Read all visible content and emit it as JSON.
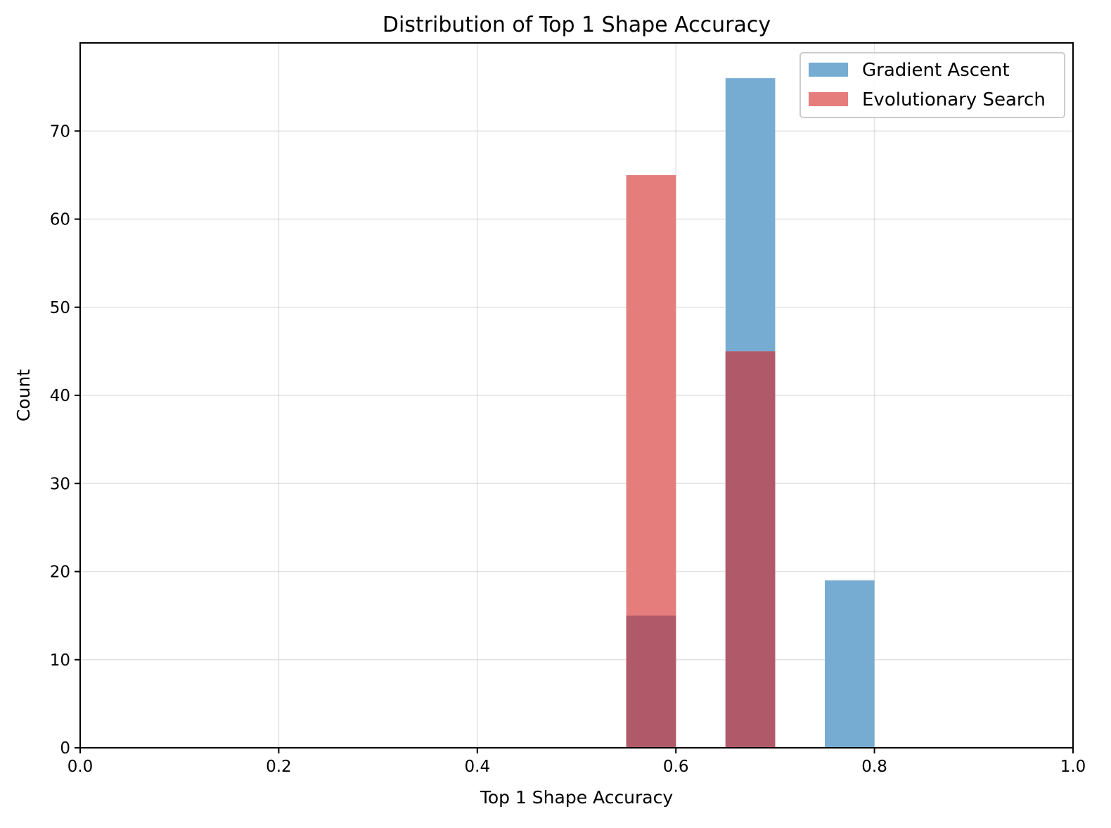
{
  "chart_data": {
    "type": "bar",
    "title": "Distribution of Top 1 Shape Accuracy",
    "xlabel": "Top 1 Shape Accuracy",
    "ylabel": "Count",
    "xlim": [
      0.0,
      1.0
    ],
    "ylim": [
      0,
      80
    ],
    "xticks": [
      "0.0",
      "0.2",
      "0.4",
      "0.6",
      "0.8",
      "1.0"
    ],
    "yticks": [
      "0",
      "10",
      "20",
      "30",
      "40",
      "50",
      "60",
      "70"
    ],
    "grid": true,
    "legend_position": "top-right",
    "bin_width": 0.05,
    "overlap_color": "#b05a69",
    "series": [
      {
        "name": "Gradient Ascent",
        "color": "#77acd2",
        "bins": [
          {
            "start": 0.55,
            "end": 0.6,
            "count": 15
          },
          {
            "start": 0.65,
            "end": 0.7,
            "count": 76
          },
          {
            "start": 0.75,
            "end": 0.8,
            "count": 19
          }
        ]
      },
      {
        "name": "Evolutionary Search",
        "color": "#e57d7d",
        "bins": [
          {
            "start": 0.55,
            "end": 0.6,
            "count": 65
          },
          {
            "start": 0.65,
            "end": 0.7,
            "count": 45
          }
        ]
      }
    ]
  }
}
